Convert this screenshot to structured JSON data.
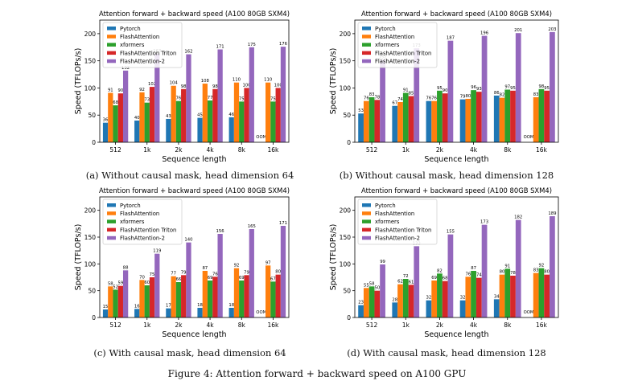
{
  "figure": {
    "caption": "Figure 4: Attention forward + backward speed on A100 GPU",
    "series_colors": [
      "#1f77b4",
      "#ff7f0e",
      "#2ca02c",
      "#d62728",
      "#9467bd"
    ],
    "oom_label": "OOM"
  },
  "chart_data": [
    {
      "type": "bar",
      "title": "Attention forward + backward speed (A100 80GB SXM4)",
      "subcaption": "(a) Without causal mask, head dimension 64",
      "xlabel": "Sequence length",
      "ylabel": "Speed (TFLOPs/s)",
      "ylim": [
        0,
        225
      ],
      "yticks": [
        "0",
        "50",
        "100",
        "150",
        "200"
      ],
      "categories": [
        "512",
        "1k",
        "2k",
        "4k",
        "8k",
        "16k"
      ],
      "legend_position": "top-left",
      "series": [
        {
          "name": "Pytorch",
          "values": [
            36,
            40,
            43,
            45,
            46,
            null
          ],
          "labels": [
            "36",
            "40",
            "43",
            "45",
            "46",
            "OOM"
          ]
        },
        {
          "name": "FlashAttention",
          "values": [
            91,
            92,
            104,
            108,
            110,
            110
          ],
          "labels": [
            "91",
            "92",
            "104",
            "108",
            "110",
            "110"
          ]
        },
        {
          "name": "xformers",
          "values": [
            68,
            73,
            76,
            77,
            75,
            75
          ],
          "labels": [
            "68",
            "73",
            "76",
            "77",
            "75",
            "75"
          ]
        },
        {
          "name": "FlashAttention Triton",
          "values": [
            90,
            102,
            98,
            98,
            100,
            100
          ],
          "labels": [
            "90",
            "102",
            "98",
            "98",
            "100",
            "100"
          ]
        },
        {
          "name": "FlashAttention-2",
          "values": [
            132,
            163,
            162,
            171,
            175,
            176
          ],
          "labels": [
            "132",
            "163",
            "162",
            "171",
            "175",
            "176"
          ]
        }
      ]
    },
    {
      "type": "bar",
      "title": "Attention forward + backward speed (A100 80GB SXM4)",
      "subcaption": "(b) Without causal mask, head dimension 128",
      "xlabel": "Sequence length",
      "ylabel": "Speed (TFLOPs/s)",
      "ylim": [
        0,
        225
      ],
      "yticks": [
        "0",
        "50",
        "100",
        "150",
        "200"
      ],
      "categories": [
        "512",
        "1k",
        "2k",
        "4k",
        "8k",
        "16k"
      ],
      "legend_position": "top-left",
      "series": [
        {
          "name": "Pytorch",
          "values": [
            53,
            67,
            76,
            79,
            86,
            null
          ],
          "labels": [
            "53",
            "67",
            "76",
            "79",
            "86",
            "OOM"
          ]
        },
        {
          "name": "FlashAttention",
          "values": [
            76,
            74,
            76,
            80,
            82,
            83
          ],
          "labels": [
            "76",
            "74",
            "76",
            "80",
            "82",
            "83"
          ]
        },
        {
          "name": "xformers",
          "values": [
            83,
            91,
            95,
            96,
            97,
            98
          ],
          "labels": [
            "83",
            "91",
            "95",
            "96",
            "97",
            "98"
          ]
        },
        {
          "name": "FlashAttention Triton",
          "values": [
            78,
            85,
            90,
            93,
            95,
            95
          ],
          "labels": [
            "78",
            "85",
            "90",
            "93",
            "95",
            "95"
          ]
        },
        {
          "name": "FlashAttention-2",
          "values": [
            152,
            173,
            187,
            196,
            201,
            203
          ],
          "labels": [
            "152",
            "173",
            "187",
            "196",
            "201",
            "203"
          ]
        }
      ]
    },
    {
      "type": "bar",
      "title": "Attention forward + backward speed (A100 80GB SXM4)",
      "subcaption": "(c) With causal mask, head dimension 64",
      "xlabel": "Sequence length",
      "ylabel": "Speed (TFLOPs/s)",
      "ylim": [
        0,
        225
      ],
      "yticks": [
        "0",
        "50",
        "100",
        "150",
        "200"
      ],
      "categories": [
        "512",
        "1k",
        "2k",
        "4k",
        "8k",
        "16k"
      ],
      "legend_position": "top-left",
      "series": [
        {
          "name": "Pytorch",
          "values": [
            15,
            16,
            17,
            18,
            18,
            null
          ],
          "labels": [
            "15",
            "16",
            "17",
            "18",
            "18",
            "OOM"
          ]
        },
        {
          "name": "FlashAttention",
          "values": [
            58,
            70,
            77,
            87,
            92,
            97
          ],
          "labels": [
            "58",
            "70",
            "77",
            "87",
            "92",
            "97"
          ]
        },
        {
          "name": "xformers",
          "values": [
            52,
            60,
            66,
            69,
            69,
            67
          ],
          "labels": [
            "52",
            "60",
            "66",
            "69",
            "69",
            "67"
          ]
        },
        {
          "name": "FlashAttention Triton",
          "values": [
            59,
            75,
            79,
            76,
            79,
            80
          ],
          "labels": [
            "59",
            "75",
            "79",
            "76",
            "79",
            "80"
          ]
        },
        {
          "name": "FlashAttention-2",
          "values": [
            88,
            119,
            140,
            156,
            165,
            171
          ],
          "labels": [
            "88",
            "119",
            "140",
            "156",
            "165",
            "171"
          ]
        }
      ]
    },
    {
      "type": "bar",
      "title": "Attention forward + backward speed (A100 80GB SXM4)",
      "subcaption": "(d) With causal mask, head dimension 128",
      "xlabel": "Sequence length",
      "ylabel": "Speed (TFLOPs/s)",
      "ylim": [
        0,
        225
      ],
      "yticks": [
        "0",
        "50",
        "100",
        "150",
        "200"
      ],
      "categories": [
        "512",
        "1k",
        "2k",
        "4k",
        "8k",
        "16k"
      ],
      "legend_position": "top-left",
      "series": [
        {
          "name": "Pytorch",
          "values": [
            23,
            28,
            32,
            32,
            34,
            null
          ],
          "labels": [
            "23",
            "28",
            "32",
            "32",
            "34",
            "OOM"
          ]
        },
        {
          "name": "FlashAttention",
          "values": [
            55,
            62,
            69,
            76,
            80,
            83
          ],
          "labels": [
            "55",
            "62",
            "69",
            "76",
            "80",
            "83"
          ]
        },
        {
          "name": "xformers",
          "values": [
            58,
            72,
            82,
            87,
            91,
            92
          ],
          "labels": [
            "58",
            "72",
            "82",
            "87",
            "91",
            "92"
          ]
        },
        {
          "name": "FlashAttention Triton",
          "values": [
            50,
            61,
            68,
            74,
            78,
            80
          ],
          "labels": [
            "50",
            "61",
            "68",
            "74",
            "78",
            "80"
          ]
        },
        {
          "name": "FlashAttention-2",
          "values": [
            99,
            133,
            155,
            173,
            182,
            189
          ],
          "labels": [
            "99",
            "133",
            "155",
            "173",
            "182",
            "189"
          ]
        }
      ]
    }
  ]
}
